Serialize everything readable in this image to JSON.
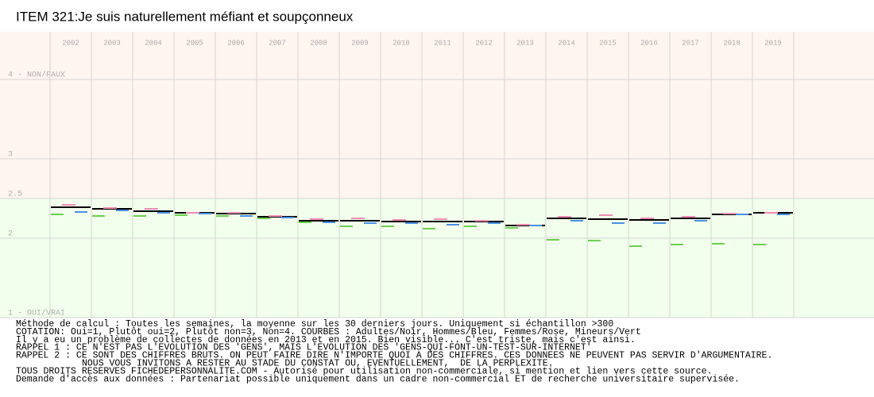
{
  "chart_data": {
    "type": "step-segments",
    "title": "ITEM 321:Je suis naturellement méfiant et soupçonneux",
    "categories": [
      "2002",
      "2003",
      "2004",
      "2005",
      "2006",
      "2007",
      "2008",
      "2009",
      "2010",
      "2011",
      "2012",
      "2013",
      "2014",
      "2015",
      "2016",
      "2017",
      "2018",
      "2019"
    ],
    "series": [
      {
        "color": "#000000",
        "values": [
          2.39,
          2.37,
          2.34,
          2.32,
          2.31,
          2.27,
          2.22,
          2.22,
          2.21,
          2.21,
          2.21,
          2.16,
          2.25,
          2.24,
          2.23,
          2.25,
          2.3,
          2.32
        ]
      },
      {
        "color": "#f08cb4",
        "values": [
          2.42,
          2.38,
          2.37,
          2.32,
          2.32,
          2.28,
          2.24,
          2.25,
          2.23,
          2.24,
          2.22,
          2.17,
          2.27,
          2.29,
          2.25,
          2.27,
          2.31,
          2.32
        ]
      },
      {
        "color": "#4a90e8",
        "values": [
          2.33,
          2.35,
          2.32,
          2.31,
          2.28,
          2.26,
          2.2,
          2.19,
          2.19,
          2.17,
          2.19,
          2.16,
          2.22,
          2.19,
          2.19,
          2.22,
          2.3,
          2.3
        ]
      },
      {
        "color": "#6cd050",
        "values": [
          2.3,
          2.28,
          2.28,
          2.29,
          2.28,
          2.25,
          2.2,
          2.15,
          2.15,
          2.12,
          2.15,
          2.13,
          1.98,
          1.97,
          1.9,
          1.92,
          1.93,
          1.92
        ]
      }
    ],
    "ylim": [
      1,
      4.6
    ],
    "yticks": [
      {
        "value": 1,
        "label": "1 - OUI/VRAI"
      },
      2,
      2.5,
      3,
      {
        "value": 4,
        "label": "4 - NON/FAUX"
      }
    ],
    "grid": true,
    "bands": [
      {
        "from": 2.5,
        "to": 4.6,
        "color": "#fff5f0"
      },
      {
        "from": 1,
        "to": 2.5,
        "color": "#f2ffec"
      }
    ],
    "notes": [
      "Méthode de calcul : Toutes les semaines, la moyenne sur les 30 derniers jours. Uniquement si échantillon >300",
      "COTATION: Oui=1, Plutôt oui=2, Plutôt non=3, Non=4. COURBES : Adultes/Noir, Hommes/Bleu, Femmes/Rose, Mineurs/Vert",
      "Il y a eu un problème de collectes de données en 2013 et en 2015. Bien visible... C'est triste, mais c'est ainsi.",
      "RAPPEL 1 : CE N'EST PAS L'EVOLUTION DES 'GENS', MAIS L'EVOLUTION DES 'GENS-QUI-FONT-UN-TEST-SUR-INTERNET'",
      "RAPPEL 2 : CE SONT DES CHIFFRES BRUTS. ON PEUT FAIRE DIRE N'IMPORTE QUOI A DES CHIFFRES. CES DONNEES NE PEUVENT PAS SERVIR D'ARGUMENTAIRE.",
      "NOUS VOUS INVITONS A RESTER AU STADE DU CONSTAT OU, EVENTUELLEMENT,  DE LA PERPLEXITE.",
      "TOUS DROITS RESERVES FICHEDEPERSONNALITE.COM - Autorisé pour utilisation non-commerciale, si mention et lien vers cette source.",
      "Demande d'accès aux données : Partenariat possible uniquement dans un cadre non-commercial ET de recherche universitaire supervisée."
    ]
  }
}
